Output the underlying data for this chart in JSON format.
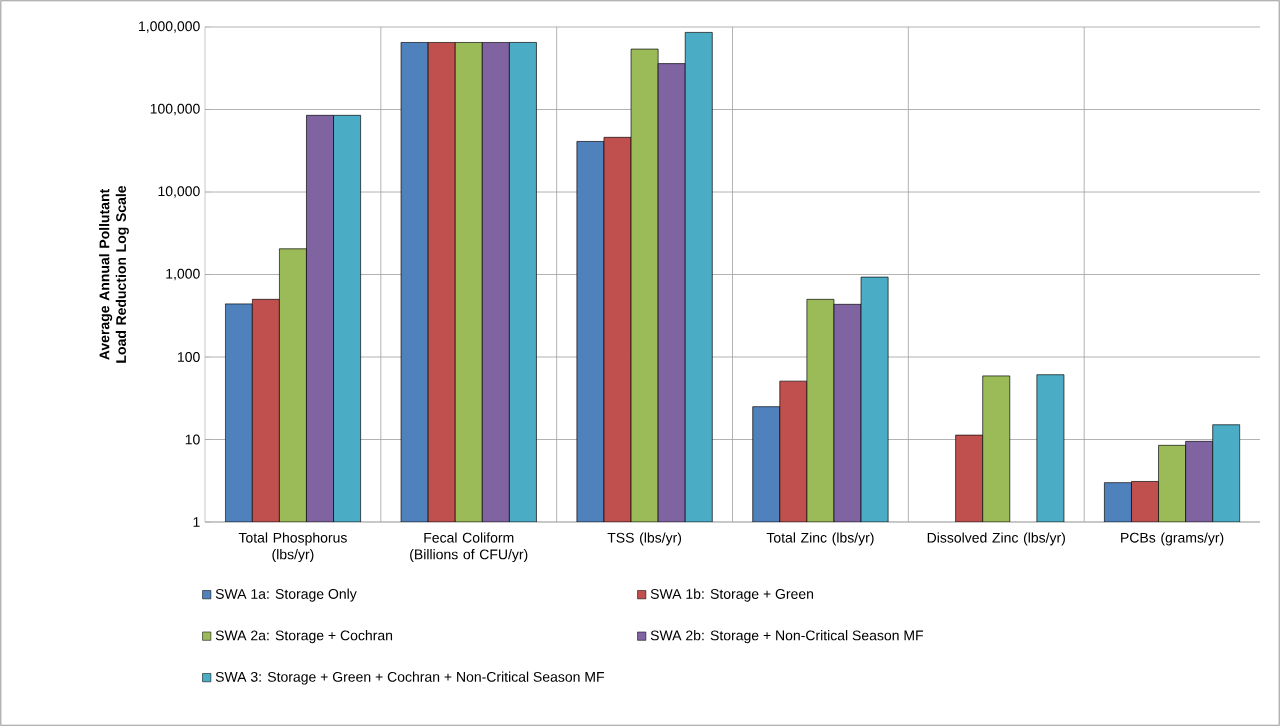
{
  "chart_data": {
    "type": "bar",
    "ylabel": "Average Annual Pollutant Load Reduction Log Scale",
    "categories": [
      "Total Phosphorus (lbs/yr)",
      "Fecal Coliform (Billions of CFU/yr)",
      "TSS (lbs/yr)",
      "Total Zinc (lbs/yr)",
      "Dissolved Zinc (lbs/yr)",
      "PCBs (grams/yr)"
    ],
    "series": [
      {
        "name": "SWA 1a: Storage Only",
        "color": "#4f81bd",
        "values": [
          440,
          650000,
          41000,
          25,
          null,
          3.0
        ]
      },
      {
        "name": "SWA 1b: Storage + Green",
        "color": "#c0504d",
        "values": [
          500,
          650000,
          46000,
          51,
          11.3,
          3.1
        ]
      },
      {
        "name": "SWA 2a: Storage + Cochran",
        "color": "#9bbb59",
        "values": [
          2050,
          650000,
          540000,
          500,
          59,
          8.5
        ]
      },
      {
        "name": "SWA 2b: Storage + Non-Critical Season MF",
        "color": "#8064a2",
        "values": [
          85000,
          650000,
          360000,
          435,
          null,
          9.5
        ]
      },
      {
        "name": "SWA 3: Storage + Green + Cochran + Non-Critical Season MF",
        "color": "#4bacc6",
        "values": [
          85000,
          650000,
          860000,
          930,
          61,
          15.1
        ]
      }
    ],
    "log": "y",
    "ylim": [
      1,
      1000000
    ],
    "yticks": [
      {
        "value": 1,
        "label": "1"
      },
      {
        "value": 10,
        "label": "10"
      },
      {
        "value": 100,
        "label": "100"
      },
      {
        "value": 1000,
        "label": "1,000"
      },
      {
        "value": 10000,
        "label": "10,000"
      },
      {
        "value": 100000,
        "label": "100,000"
      },
      {
        "value": 1000000,
        "label": "1,000,000"
      }
    ],
    "grid": true,
    "legend": "bottom"
  }
}
